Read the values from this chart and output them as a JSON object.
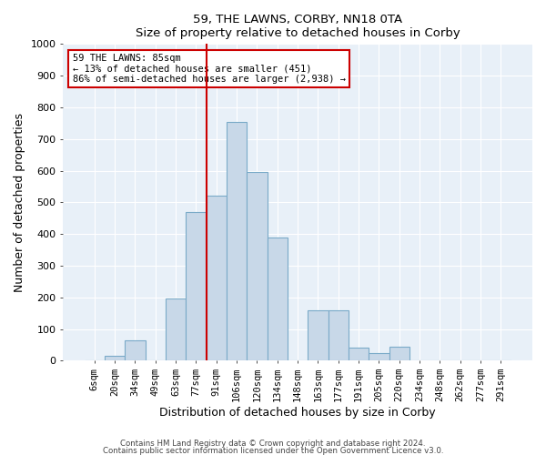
{
  "title": "59, THE LAWNS, CORBY, NN18 0TA",
  "subtitle": "Size of property relative to detached houses in Corby",
  "xlabel": "Distribution of detached houses by size in Corby",
  "ylabel": "Number of detached properties",
  "bar_labels": [
    "6sqm",
    "20sqm",
    "34sqm",
    "49sqm",
    "63sqm",
    "77sqm",
    "91sqm",
    "106sqm",
    "120sqm",
    "134sqm",
    "148sqm",
    "163sqm",
    "177sqm",
    "191sqm",
    "205sqm",
    "220sqm",
    "234sqm",
    "248sqm",
    "262sqm",
    "277sqm",
    "291sqm"
  ],
  "bar_values": [
    0,
    15,
    65,
    0,
    195,
    470,
    520,
    755,
    595,
    390,
    0,
    160,
    160,
    42,
    25,
    45,
    0,
    0,
    0,
    0,
    0
  ],
  "bar_color": "#c8d8e8",
  "bar_edge_color": "#7aaac8",
  "vline_x_index": 6,
  "vline_color": "#cc0000",
  "annotation_line1": "59 THE LAWNS: 85sqm",
  "annotation_line2": "← 13% of detached houses are smaller (451)",
  "annotation_line3": "86% of semi-detached houses are larger (2,938) →",
  "annotation_box_color": "#ffffff",
  "annotation_box_edge": "#cc0000",
  "ylim": [
    0,
    1000
  ],
  "yticks": [
    0,
    100,
    200,
    300,
    400,
    500,
    600,
    700,
    800,
    900,
    1000
  ],
  "bg_color": "#e8f0f8",
  "footer1": "Contains HM Land Registry data © Crown copyright and database right 2024.",
  "footer2": "Contains public sector information licensed under the Open Government Licence v3.0."
}
